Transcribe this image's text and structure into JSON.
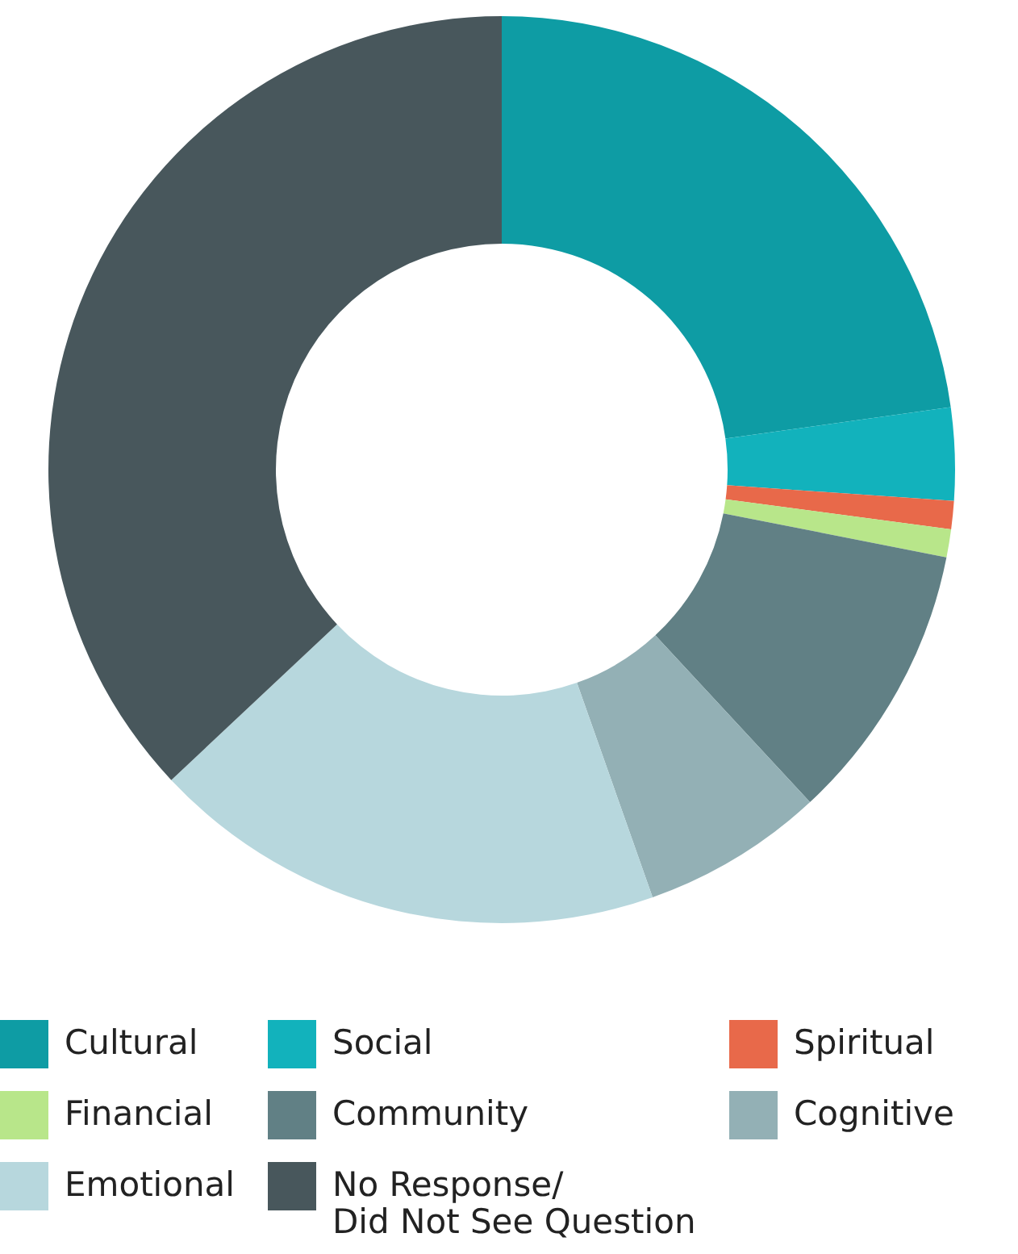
{
  "chart_data": {
    "type": "donut",
    "categories": [
      "Cultural",
      "Social",
      "Spiritual",
      "Financial",
      "Community",
      "Cognitive",
      "Emotional",
      "No Response/\nDid Not See Question"
    ],
    "values": [
      22.8,
      3.3,
      1.0,
      1.0,
      10.0,
      6.5,
      18.4,
      37.0
    ],
    "colors": [
      "#0e9ca4",
      "#12b2bc",
      "#e8694a",
      "#b8e68a",
      "#618085",
      "#93b0b5",
      "#b7d7dd",
      "#48575c"
    ],
    "legend": "bottom"
  }
}
